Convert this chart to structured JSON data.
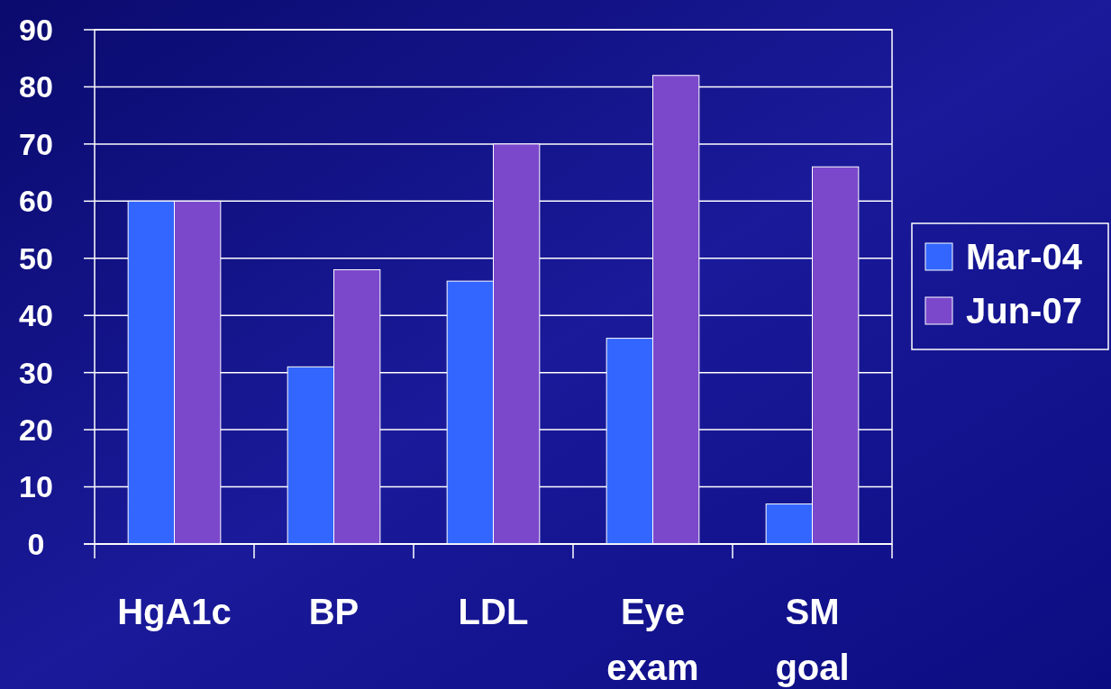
{
  "chart_data": {
    "type": "bar",
    "categories": [
      "HgA1c",
      "BP",
      "LDL",
      "Eye exam",
      "SM goal"
    ],
    "series": [
      {
        "name": "Mar-04",
        "color": "#3366ff",
        "values": [
          60,
          31,
          46,
          36,
          7
        ]
      },
      {
        "name": "Jun-07",
        "color": "#7b48cc",
        "values": [
          60,
          48,
          70,
          82,
          66
        ]
      }
    ],
    "ylim": [
      0,
      90
    ],
    "yticks": [
      0,
      10,
      20,
      30,
      40,
      50,
      60,
      70,
      80,
      90
    ],
    "grid": "y",
    "legend": "right"
  }
}
